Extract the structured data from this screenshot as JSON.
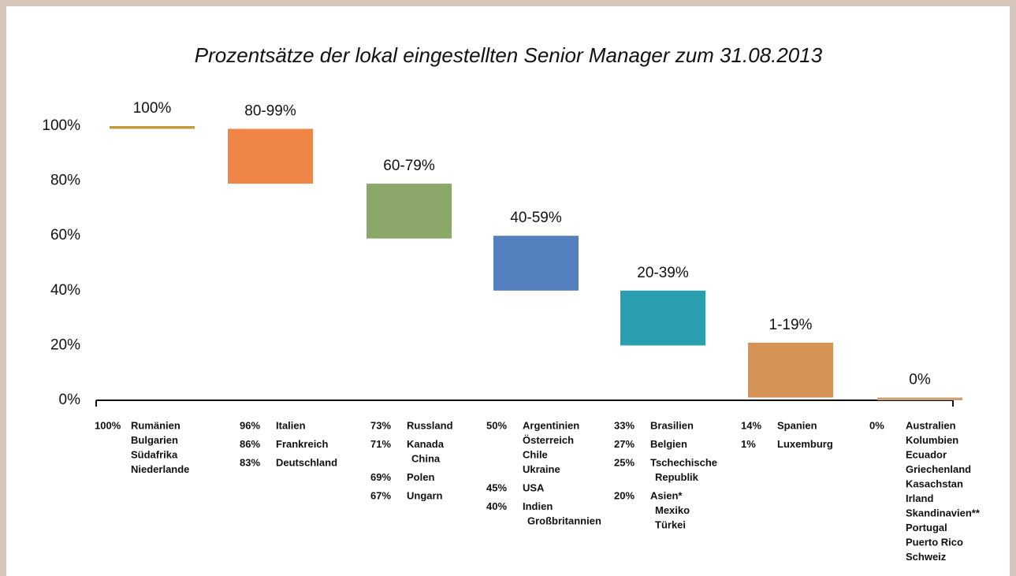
{
  "chart_data": {
    "type": "floating_bar",
    "title": "Prozentsätze der lokal eingestellten Senior Manager zum 31.08.2013",
    "categories": [
      "100%",
      "80-99%",
      "60-79%",
      "40-59%",
      "20-39%",
      "1-19%",
      "0%"
    ],
    "lows": [
      99,
      79,
      59,
      40,
      20,
      1,
      0
    ],
    "highs": [
      100,
      99,
      79,
      60,
      40,
      21,
      1
    ],
    "colors": [
      "#c49a3c",
      "#ef8547",
      "#8ba86a",
      "#5580c0",
      "#2a9fb0",
      "#d59455",
      "#c9a07a"
    ],
    "ylim": [
      0,
      100
    ],
    "yticks": [
      {
        "value": 0,
        "label": "0%"
      },
      {
        "value": 20,
        "label": "20%"
      },
      {
        "value": 40,
        "label": "40%"
      },
      {
        "value": 60,
        "label": "60%"
      },
      {
        "value": 80,
        "label": "80%"
      },
      {
        "value": 100,
        "label": "100%"
      }
    ],
    "countries": [
      [
        {
          "pct": "100%",
          "names": [
            "Rumänien",
            "Bulgarien",
            "Südafrika",
            "Niederlande"
          ]
        }
      ],
      [
        {
          "pct": "96%",
          "names": [
            "Italien"
          ]
        },
        {
          "pct": "86%",
          "names": [
            "Frankreich"
          ]
        },
        {
          "pct": "83%",
          "names": [
            "Deutschland"
          ]
        }
      ],
      [
        {
          "pct": "73%",
          "names": [
            "Russland"
          ]
        },
        {
          "pct": "71%",
          "names": [
            "Kanada",
            "China"
          ]
        },
        {
          "pct": "69%",
          "names": [
            "Polen"
          ]
        },
        {
          "pct": "67%",
          "names": [
            "Ungarn"
          ]
        }
      ],
      [
        {
          "pct": "50%",
          "names": [
            "Argentinien",
            "Österreich",
            "Chile",
            "Ukraine"
          ]
        },
        {
          "pct": "45%",
          "names": [
            "USA"
          ]
        },
        {
          "pct": "40%",
          "names": [
            "Indien",
            "Großbritannien"
          ]
        }
      ],
      [
        {
          "pct": "33%",
          "names": [
            "Brasilien"
          ]
        },
        {
          "pct": "27%",
          "names": [
            "Belgien"
          ]
        },
        {
          "pct": "25%",
          "names": [
            "Tschechische",
            "Republik"
          ]
        },
        {
          "pct": "20%",
          "names": [
            "Asien*",
            "Mexiko",
            "Türkei"
          ]
        }
      ],
      [
        {
          "pct": "14%",
          "names": [
            "Spanien"
          ]
        },
        {
          "pct": "1%",
          "names": [
            "Luxemburg"
          ]
        }
      ],
      [
        {
          "pct": "0%",
          "names": [
            "Australien",
            "Kolumbien",
            "Ecuador",
            "Griechenland",
            "Kasachstan",
            "Irland",
            "Skandinavien**",
            "Portugal",
            "Puerto Rico",
            "Schweiz"
          ]
        }
      ]
    ]
  }
}
